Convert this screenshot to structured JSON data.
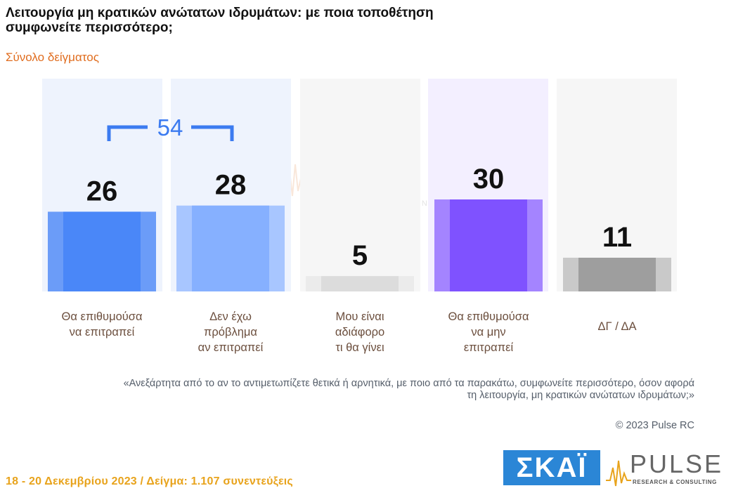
{
  "header": {
    "title": "Λειτουργία μη κρατικών ανώτατων ιδρυμάτων: με ποια τοποθέτηση συμφωνείτε περισσότερο;",
    "subtitle": "Σύνολο δείγματος"
  },
  "chart_data": {
    "type": "bar",
    "title": "Λειτουργία μη κρατικών ανώτατων ιδρυμάτων: με ποια τοποθέτηση συμφωνείτε περισσότερο;",
    "subtitle": "Σύνολο δείγματος",
    "categories": [
      [
        "Θα επιθυμούσα",
        "να επιτραπεί"
      ],
      [
        "Δεν έχω",
        "πρόβλημα",
        "αν επιτραπεί"
      ],
      [
        "Μου είναι",
        "αδιάφορο",
        "τι θα γίνει"
      ],
      [
        "Θα επιθυμούσα",
        "να μην",
        "επιτραπεί"
      ],
      [
        "ΔΓ / ΔΑ"
      ]
    ],
    "values": [
      26,
      28,
      5,
      30,
      11
    ],
    "colors": [
      "#4a87f8",
      "#86b0ff",
      "#dcdcdc",
      "#7f52ff",
      "#9e9e9e"
    ],
    "edge_colors": [
      "#6b9cf8",
      "#a8c6ff",
      "#ebebeb",
      "#a484ff",
      "#c9c9c9"
    ],
    "column_backgrounds": [
      "#eef3fd",
      "#eef3fd",
      "#f6f6f6",
      "#f3efff",
      "#f6f6f6"
    ],
    "ylim": [
      0,
      30
    ],
    "grid": false,
    "legend": "none",
    "annotations": [
      {
        "type": "bracket",
        "from": 0,
        "to": 1,
        "label": "54",
        "color": "#3c7bf0"
      }
    ]
  },
  "notes": {
    "question": "«Ανεξάρτητα από το αν το αντιμετωπίζετε θετικά ή αρνητικά, με ποιο από τα παρακάτω, συμφωνείτε περισσότερο, όσον αφορά τη λειτουργία, μη κρατικών ανώτατων ιδρυμάτων;»",
    "copyright": "© 2023 Pulse RC"
  },
  "footer": {
    "fieldwork": "18 - 20 Δεκεμβρίου 2023 / Δείγμα: 1.107 συνεντεύξεις"
  },
  "logos": {
    "skai": "ΣΚΑΪ",
    "pulse": "PULSE",
    "pulse_tagline": "RESEARCH & CONSULTING"
  }
}
